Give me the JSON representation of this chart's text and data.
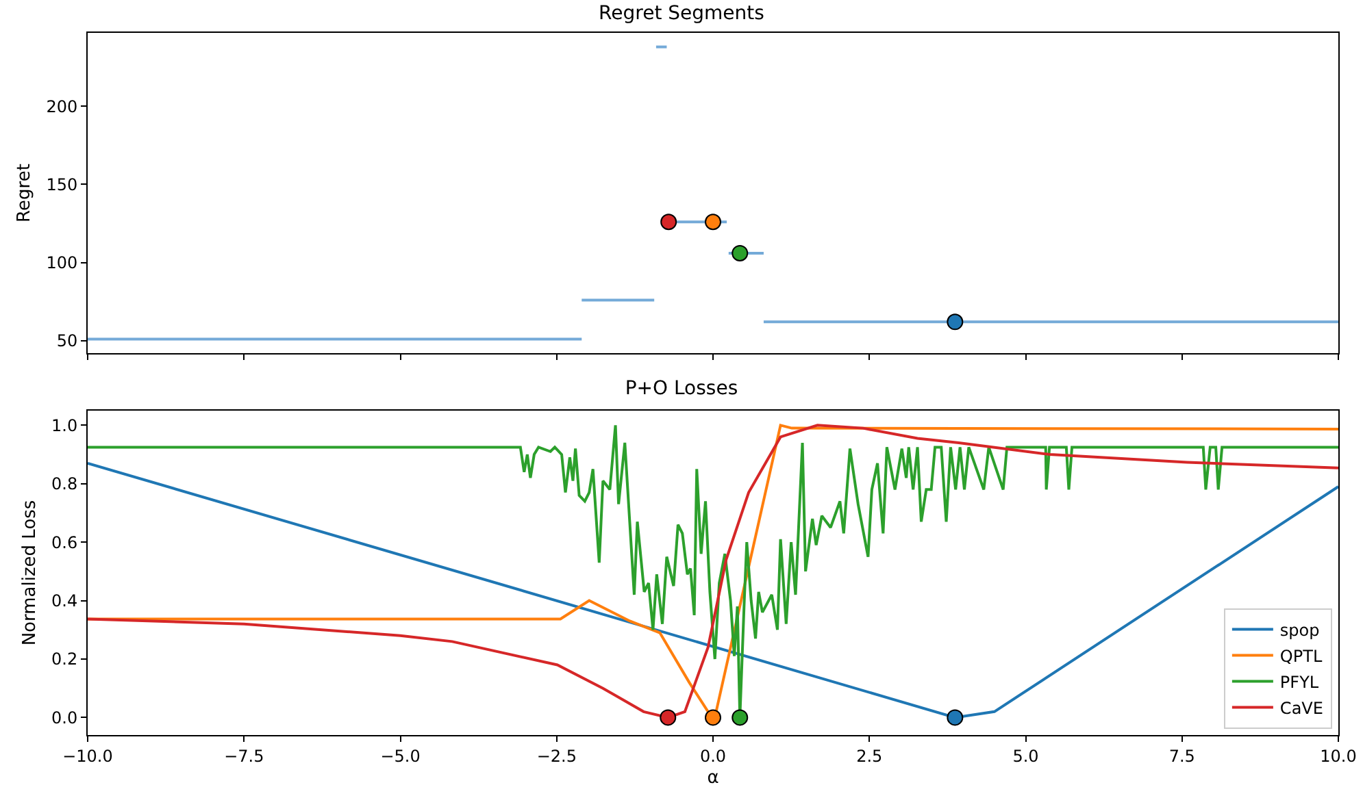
{
  "chart_data": [
    {
      "type": "line",
      "title": "Regret Segments",
      "ylabel": "Regret",
      "tick_labels": "y",
      "legend": false,
      "xlim": [
        -10,
        10
      ],
      "xticks": [
        {
          "value": -10,
          "label": null
        },
        {
          "value": -7.5,
          "label": null
        },
        {
          "value": -5,
          "label": null
        },
        {
          "value": -2.5,
          "label": null
        },
        {
          "value": 0,
          "label": null
        },
        {
          "value": 2.5,
          "label": null
        },
        {
          "value": 5,
          "label": null
        },
        {
          "value": 7.5,
          "label": null
        },
        {
          "value": 10,
          "label": null
        }
      ],
      "ylim": [
        42,
        247
      ],
      "yticks": [
        50,
        100,
        150,
        200
      ],
      "series": [
        {
          "color": "#74aad8",
          "x": [
            -10,
            -2.1
          ],
          "values": [
            51,
            51
          ]
        },
        {
          "color": "#74aad8",
          "x": [
            -2.1,
            -0.94
          ],
          "values": [
            76,
            76
          ]
        },
        {
          "color": "#74aad8",
          "x": [
            -0.91,
            -0.74
          ],
          "values": [
            238,
            238
          ]
        },
        {
          "color": "#74aad8",
          "x": [
            -0.71,
            0.22
          ],
          "values": [
            126,
            126
          ]
        },
        {
          "color": "#74aad8",
          "x": [
            0.25,
            0.81
          ],
          "values": [
            106,
            106
          ]
        },
        {
          "color": "#74aad8",
          "x": [
            0.81,
            10
          ],
          "values": [
            62,
            62
          ]
        },
        {
          "type": "scatter",
          "x": [
            -0.71,
            0,
            0.43,
            3.87
          ],
          "values": [
            126,
            126,
            106,
            62
          ],
          "colors": [
            "#d62728",
            "#ff7f0e",
            "#2ca02c",
            "#1f77b4"
          ]
        }
      ]
    },
    {
      "type": "line",
      "title": "P+O Losses",
      "xlabel": "α",
      "ylabel": "Normalized Loss",
      "legend": "bottom right",
      "xlim": [
        -10,
        10
      ],
      "xticks": [
        {
          "value": -10,
          "label": "−10.0"
        },
        {
          "value": -7.5,
          "label": "−7.5"
        },
        {
          "value": -5,
          "label": "−5.0"
        },
        {
          "value": -2.5,
          "label": "−2.5"
        },
        {
          "value": 0,
          "label": "0.0"
        },
        {
          "value": 2.5,
          "label": "2.5"
        },
        {
          "value": 5,
          "label": "5.0"
        },
        {
          "value": 7.5,
          "label": "7.5"
        },
        {
          "value": 10,
          "label": "10.0"
        }
      ],
      "ylim": [
        -0.06,
        1.05
      ],
      "yticks": [
        {
          "value": 0,
          "label": "0.0"
        },
        {
          "value": 0.2,
          "label": "0.2"
        },
        {
          "value": 0.4,
          "label": "0.4"
        },
        {
          "value": 0.6,
          "label": "0.6"
        },
        {
          "value": 0.8,
          "label": "0.8"
        },
        {
          "value": 1,
          "label": "1.0"
        }
      ],
      "series": [
        {
          "name": "spop",
          "color": "#1f77b4",
          "x": [
            -10,
            3.87,
            4.5,
            10
          ],
          "values": [
            0.87,
            0,
            0.02,
            0.79
          ]
        },
        {
          "name": "QPTL",
          "color": "#ff7f0e",
          "x": [
            -10,
            -2.44,
            -1.98,
            -1.33,
            -0.85,
            -0.38,
            -0.08,
            0,
            0.05,
            1.08,
            1.26,
            10
          ],
          "values": [
            0.337,
            0.337,
            0.4,
            0.33,
            0.29,
            0.12,
            0.02,
            0,
            0.02,
            1.0,
            0.99,
            0.987
          ]
        },
        {
          "name": "PFYL",
          "color": "#2ca02c",
          "x": [
            -10,
            -3.08,
            -3.02,
            -2.97,
            -2.92,
            -2.86,
            -2.79,
            -2.6,
            -2.53,
            -2.42,
            -2.36,
            -2.29,
            -2.24,
            -2.2,
            -2.14,
            -2.05,
            -1.98,
            -1.92,
            -1.82,
            -1.76,
            -1.65,
            -1.56,
            -1.51,
            -1.41,
            -1.26,
            -1.21,
            -1.1,
            -1.03,
            -0.96,
            -0.9,
            -0.81,
            -0.74,
            -0.63,
            -0.56,
            -0.49,
            -0.41,
            -0.36,
            -0.3,
            -0.26,
            -0.19,
            -0.12,
            -0.05,
            0.03,
            0.1,
            0.19,
            0.28,
            0.34,
            0.39,
            0.43,
            0.5,
            0.54,
            0.61,
            0.68,
            0.73,
            0.79,
            0.94,
            1.03,
            1.08,
            1.17,
            1.25,
            1.32,
            1.43,
            1.48,
            1.59,
            1.65,
            1.74,
            1.88,
            2.03,
            2.09,
            2.19,
            2.32,
            2.48,
            2.54,
            2.63,
            2.72,
            2.78,
            2.91,
            3.02,
            3.09,
            3.13,
            3.2,
            3.27,
            3.33,
            3.41,
            3.49,
            3.55,
            3.65,
            3.73,
            3.8,
            3.88,
            3.95,
            4.02,
            4.09,
            4.33,
            4.41,
            4.64,
            4.7,
            5.32,
            5.33,
            5.38,
            5.65,
            5.69,
            5.74,
            7.84,
            7.88,
            7.95,
            8.04,
            8.08,
            8.14,
            10
          ],
          "values": [
            0.925,
            0.925,
            0.84,
            0.9,
            0.82,
            0.9,
            0.925,
            0.91,
            0.925,
            0.9,
            0.77,
            0.89,
            0.81,
            0.92,
            0.76,
            0.74,
            0.77,
            0.85,
            0.53,
            0.81,
            0.78,
            1.0,
            0.73,
            0.94,
            0.42,
            0.67,
            0.43,
            0.46,
            0.3,
            0.49,
            0.32,
            0.55,
            0.45,
            0.66,
            0.63,
            0.49,
            0.51,
            0.35,
            0.85,
            0.56,
            0.74,
            0.43,
            0.2,
            0.46,
            0.56,
            0.4,
            0.21,
            0.38,
            0,
            0.4,
            0.6,
            0.4,
            0.27,
            0.43,
            0.36,
            0.42,
            0.3,
            0.61,
            0.32,
            0.6,
            0.42,
            0.94,
            0.5,
            0.68,
            0.59,
            0.69,
            0.65,
            0.74,
            0.63,
            0.92,
            0.73,
            0.55,
            0.78,
            0.87,
            0.63,
            0.925,
            0.78,
            0.92,
            0.82,
            0.925,
            0.78,
            0.925,
            0.67,
            0.78,
            0.78,
            0.925,
            0.925,
            0.67,
            0.925,
            0.78,
            0.925,
            0.78,
            0.925,
            0.78,
            0.925,
            0.78,
            0.925,
            0.925,
            0.78,
            0.925,
            0.925,
            0.78,
            0.925,
            0.925,
            0.78,
            0.925,
            0.925,
            0.78,
            0.925,
            0.925
          ]
        },
        {
          "name": "CaVE",
          "color": "#d62728",
          "x": [
            -10,
            -7.5,
            -5,
            -4.17,
            -2.49,
            -1.76,
            -1.11,
            -0.72,
            -0.45,
            -0.08,
            0.21,
            0.57,
            1.08,
            1.67,
            2.4,
            3.27,
            3.93,
            5.39,
            7.58,
            10
          ],
          "values": [
            0.337,
            0.32,
            0.28,
            0.26,
            0.18,
            0.1,
            0.02,
            0,
            0.02,
            0.24,
            0.54,
            0.77,
            0.96,
            1.0,
            0.99,
            0.955,
            0.94,
            0.9,
            0.873,
            0.854
          ]
        },
        {
          "type": "scatter",
          "x": [
            -0.72,
            0,
            0.43,
            3.87
          ],
          "values": [
            0,
            0,
            0,
            0
          ],
          "colors": [
            "#d62728",
            "#ff7f0e",
            "#2ca02c",
            "#1f77b4"
          ]
        }
      ]
    }
  ]
}
